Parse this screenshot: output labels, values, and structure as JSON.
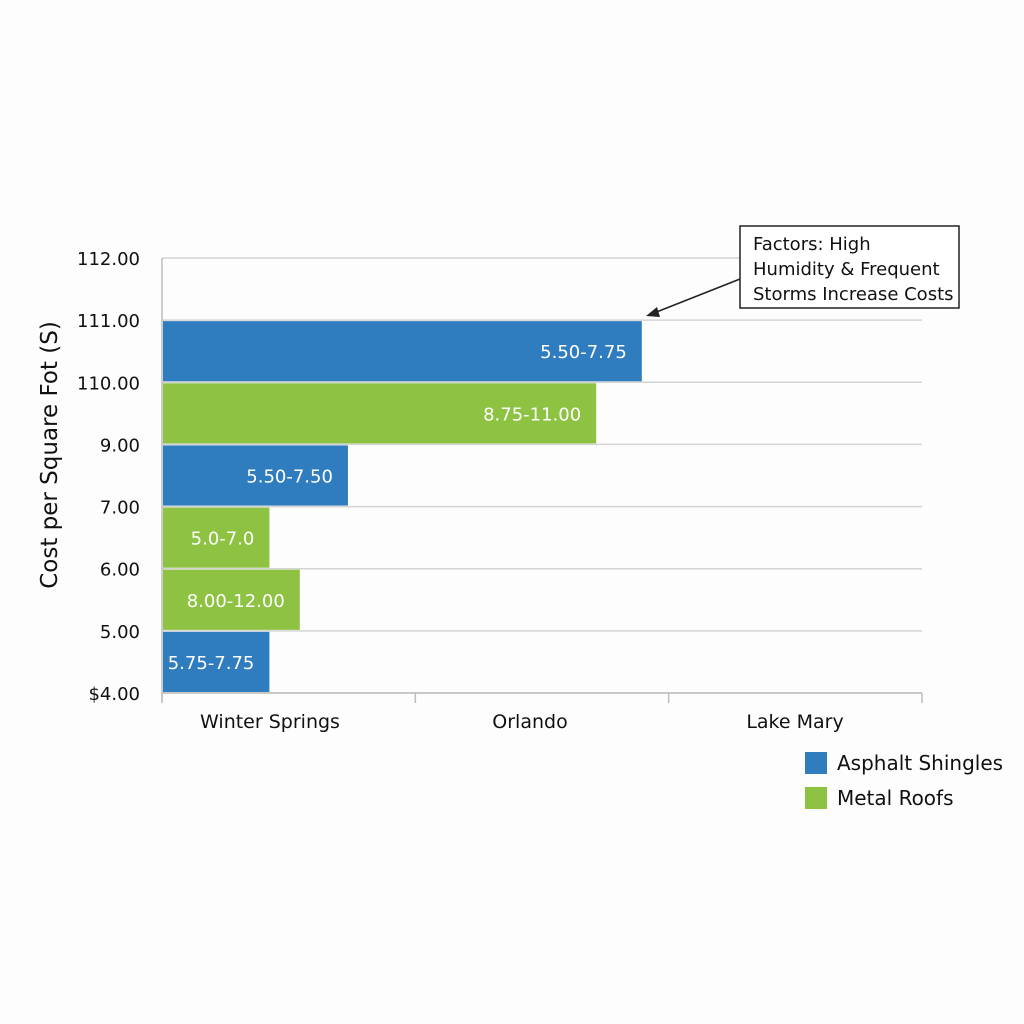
{
  "chart_data": {
    "type": "bar",
    "orientation": "horizontal",
    "title": "",
    "ylabel": "Cost per Square Fot (S)",
    "xlabel": "",
    "y_ticks": [
      "$4.00",
      "5.00",
      "6.00",
      "7.00",
      "9.00",
      "110.00",
      "111.00",
      "112.00"
    ],
    "x_categories": [
      "Winter Springs",
      "Orlando",
      "Lake Mary"
    ],
    "x_range": [
      0,
      3
    ],
    "grid": true,
    "legend_position": "bottom-right",
    "series_colors": {
      "Asphalt Shingles": "#2f7cbf",
      "Metal Roofs": "#8dc243"
    },
    "legend": [
      "Asphalt Shingles",
      "Metal Roofs"
    ],
    "bars": [
      {
        "band": "111.00-112.00",
        "series": "Asphalt Shingles",
        "extent": 1.89,
        "label": "5.50-7.75"
      },
      {
        "band": "110.00-111.00",
        "series": "Metal Roofs",
        "extent": 1.71,
        "label": "8.75-11.00"
      },
      {
        "band": "9.00-110.00",
        "series": "Asphalt Shingles",
        "extent": 0.73,
        "label": "5.50-7.50"
      },
      {
        "band": "7.00-9.00",
        "series": "Metal Roofs",
        "extent": 0.42,
        "label": "5.0-7.0"
      },
      {
        "band": "6.00-7.00",
        "series": "Metal Roofs",
        "extent": 0.54,
        "label": "8.00-12.00"
      },
      {
        "band": "5.00-6.00",
        "series": "Asphalt Shingles",
        "extent": 0.42,
        "label": "5.75-7.75"
      }
    ],
    "annotation": {
      "lines": [
        "Factors: High",
        "Humidity & Frequent",
        "Storms Increase Costs"
      ],
      "target": "Orlando Asphalt Shingles bar"
    }
  }
}
